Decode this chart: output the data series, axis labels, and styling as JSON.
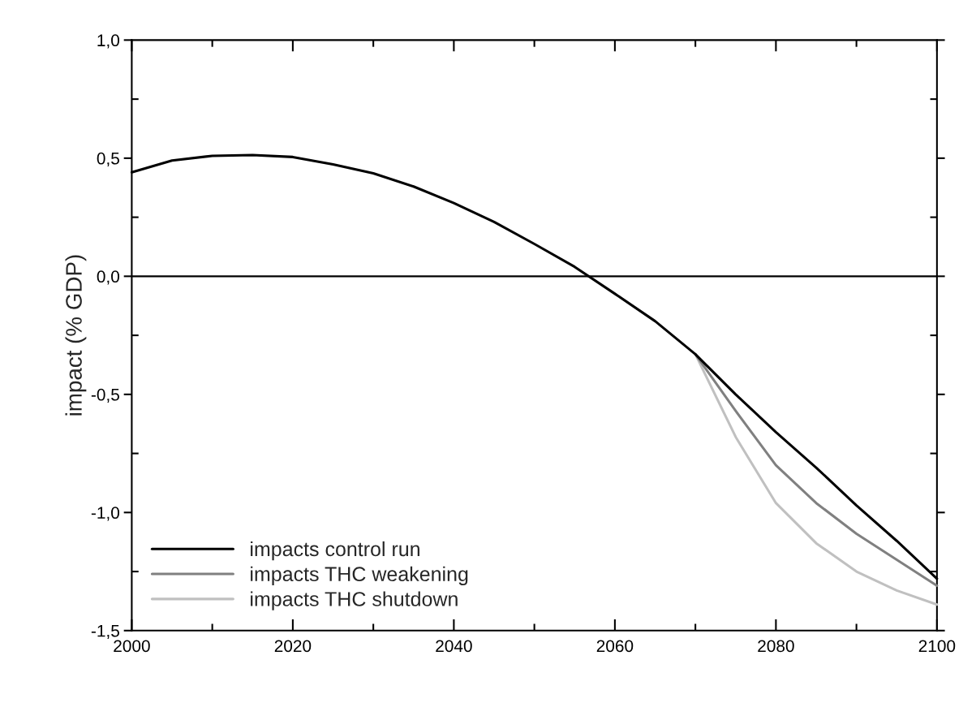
{
  "chart_data": {
    "type": "line",
    "ylabel": "impact (% GDP)",
    "xlim": [
      2000,
      2100
    ],
    "xticks": [
      2000,
      2020,
      2040,
      2060,
      2080,
      2100
    ],
    "ylim": [
      -1.5,
      1.0
    ],
    "yticks": [
      {
        "value": -1.5,
        "label": "-1,5"
      },
      {
        "value": -1.0,
        "label": "-1,0"
      },
      {
        "value": -0.5,
        "label": "-0,5"
      },
      {
        "value": 0.0,
        "label": "0,0"
      },
      {
        "value": 0.5,
        "label": "0,5"
      },
      {
        "value": 1.0,
        "label": "1,0"
      }
    ],
    "ref_lines": [
      {
        "axis": "y",
        "value": 0,
        "color": "#000000"
      }
    ],
    "grid": false,
    "legend": "bottom left",
    "marker": "none",
    "line_style": "solid",
    "series": [
      {
        "name": "impacts control run",
        "color": "#000000",
        "x": [
          2000,
          2005,
          2010,
          2015,
          2020,
          2025,
          2030,
          2035,
          2040,
          2045,
          2050,
          2055,
          2060,
          2065,
          2070,
          2075,
          2080,
          2085,
          2090,
          2095,
          2100
        ],
        "values": [
          0.44,
          0.49,
          0.51,
          0.513,
          0.505,
          0.474,
          0.436,
          0.38,
          0.31,
          0.23,
          0.137,
          0.04,
          -0.074,
          -0.19,
          -0.33,
          -0.5,
          -0.66,
          -0.81,
          -0.97,
          -1.12,
          -1.28
        ]
      },
      {
        "name": "impacts THC weakening",
        "color": "#808080",
        "x": [
          2070,
          2075,
          2080,
          2085,
          2090,
          2095,
          2100
        ],
        "values": [
          -0.33,
          -0.57,
          -0.8,
          -0.96,
          -1.09,
          -1.2,
          -1.31
        ]
      },
      {
        "name": "impacts THC shutdown",
        "color": "#c0c0c0",
        "x": [
          2070,
          2075,
          2080,
          2085,
          2090,
          2095,
          2100
        ],
        "values": [
          -0.33,
          -0.68,
          -0.96,
          -1.13,
          -1.25,
          -1.33,
          -1.39
        ]
      }
    ]
  }
}
